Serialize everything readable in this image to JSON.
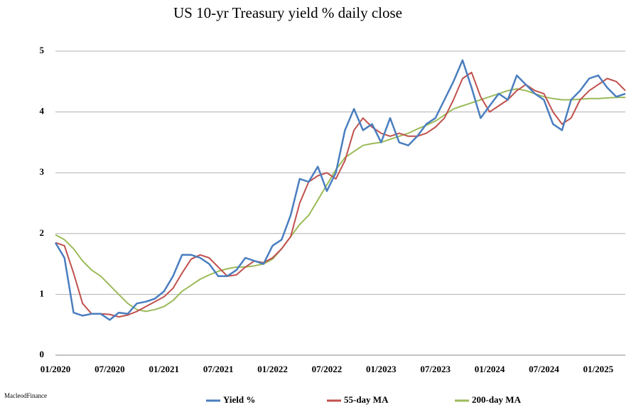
{
  "chart_data": {
    "type": "line",
    "title": "US 10-yr Treasury yield % daily close",
    "source": "MacleodFinance",
    "x": [
      "01/2020",
      null,
      null,
      null,
      null,
      null,
      "07/2020",
      null,
      null,
      null,
      null,
      null,
      "01/2021",
      null,
      null,
      null,
      null,
      null,
      "07/2021",
      null,
      null,
      null,
      null,
      null,
      "01/2022",
      null,
      null,
      null,
      null,
      null,
      "07/2022",
      null,
      null,
      null,
      null,
      null,
      "01/2023",
      null,
      null,
      null,
      null,
      null,
      "07/2023",
      null,
      null,
      null,
      null,
      null,
      "01/2024",
      null,
      null,
      null,
      null,
      null,
      "07/2024",
      null,
      null,
      null,
      null,
      null,
      "01/2025",
      null,
      null,
      null
    ],
    "series": [
      {
        "name": "Yield %",
        "color": "#4a7ebf",
        "values": [
          1.85,
          1.6,
          0.7,
          0.65,
          0.68,
          0.68,
          0.58,
          0.7,
          0.68,
          0.85,
          0.88,
          0.93,
          1.05,
          1.3,
          1.65,
          1.65,
          1.6,
          1.5,
          1.3,
          1.3,
          1.4,
          1.6,
          1.55,
          1.5,
          1.8,
          1.9,
          2.3,
          2.9,
          2.85,
          3.1,
          2.7,
          3.0,
          3.7,
          4.05,
          3.7,
          3.8,
          3.5,
          3.9,
          3.5,
          3.45,
          3.6,
          3.8,
          3.9,
          4.2,
          4.5,
          4.85,
          4.4,
          3.9,
          4.1,
          4.3,
          4.2,
          4.6,
          4.45,
          4.3,
          4.2,
          3.8,
          3.7,
          4.2,
          4.35,
          4.55,
          4.6,
          4.4,
          4.25,
          4.3
        ]
      },
      {
        "name": "55-day MA",
        "color": "#c0504d",
        "values": [
          1.85,
          1.8,
          1.35,
          0.85,
          0.68,
          0.68,
          0.67,
          0.63,
          0.66,
          0.72,
          0.8,
          0.88,
          0.96,
          1.1,
          1.35,
          1.58,
          1.65,
          1.6,
          1.45,
          1.3,
          1.32,
          1.45,
          1.55,
          1.52,
          1.6,
          1.75,
          1.95,
          2.5,
          2.85,
          2.95,
          3.0,
          2.9,
          3.2,
          3.7,
          3.9,
          3.75,
          3.65,
          3.6,
          3.65,
          3.6,
          3.6,
          3.65,
          3.75,
          3.9,
          4.2,
          4.55,
          4.65,
          4.25,
          4.0,
          4.1,
          4.2,
          4.35,
          4.45,
          4.35,
          4.3,
          4.0,
          3.8,
          3.9,
          4.2,
          4.35,
          4.45,
          4.55,
          4.5,
          4.35
        ]
      },
      {
        "name": "200-day MA",
        "color": "#9bbb59",
        "values": [
          1.98,
          1.9,
          1.75,
          1.55,
          1.4,
          1.3,
          1.15,
          1.0,
          0.85,
          0.75,
          0.72,
          0.75,
          0.8,
          0.9,
          1.05,
          1.15,
          1.25,
          1.32,
          1.38,
          1.42,
          1.45,
          1.45,
          1.47,
          1.5,
          1.58,
          1.75,
          1.95,
          2.15,
          2.3,
          2.55,
          2.8,
          3.05,
          3.25,
          3.35,
          3.45,
          3.48,
          3.5,
          3.55,
          3.6,
          3.65,
          3.72,
          3.78,
          3.85,
          3.95,
          4.05,
          4.1,
          4.15,
          4.2,
          4.25,
          4.3,
          4.35,
          4.38,
          4.35,
          4.3,
          4.25,
          4.22,
          4.2,
          4.2,
          4.21,
          4.22,
          4.22,
          4.23,
          4.24,
          4.24
        ]
      }
    ],
    "ylim": [
      0,
      5
    ],
    "yticks": [
      0,
      1,
      2,
      3,
      4,
      5
    ],
    "grid": true
  }
}
